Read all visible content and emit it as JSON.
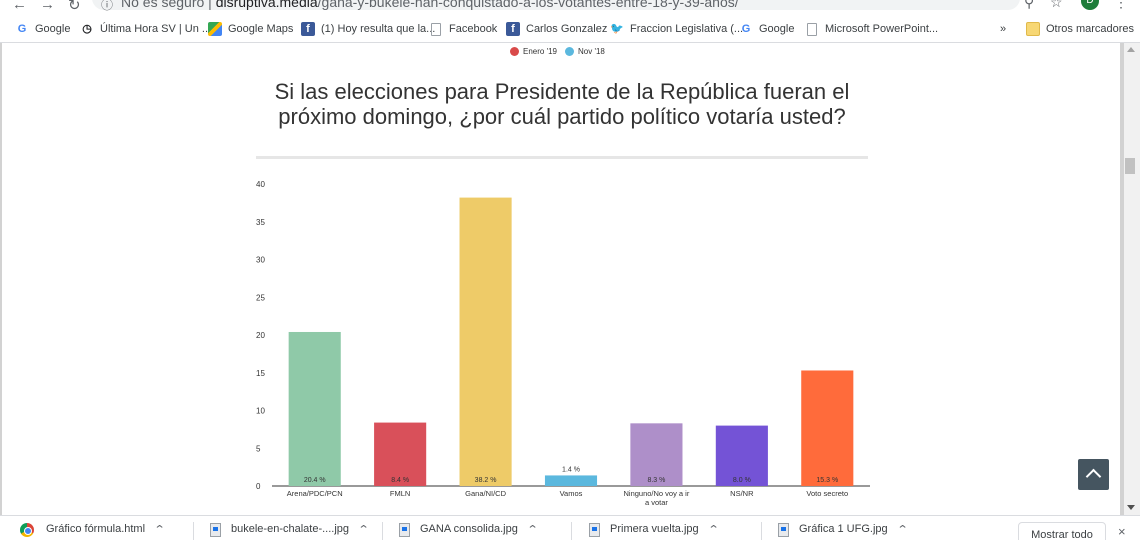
{
  "browser": {
    "omnibox": {
      "security_label": "No es seguro",
      "domain": "disruptiva.media",
      "path": "/gana-y-bukele-han-conquistado-a-los-votantes-entre-18-y-39-años/"
    },
    "profile_initial": "D"
  },
  "bookmarks": [
    {
      "label": "Google",
      "icon": "google-icon"
    },
    {
      "label": "Última Hora SV | Un ...",
      "icon": "clock-icon"
    },
    {
      "label": "Google Maps",
      "icon": "maps-icon"
    },
    {
      "label": "(1) Hoy resulta que la...",
      "icon": "facebook-icon"
    },
    {
      "label": "Facebook",
      "icon": "page-icon"
    },
    {
      "label": "Carlos Gonzalez",
      "icon": "facebook-icon"
    },
    {
      "label": "Fraccion Legislativa (...",
      "icon": "twitter-icon"
    },
    {
      "label": "Google",
      "icon": "google-icon"
    },
    {
      "label": "Microsoft PowerPoint...",
      "icon": "page-icon"
    }
  ],
  "bookmarks_overflow": "»",
  "other_bookmarks": "Otros marcadores",
  "legend": [
    {
      "label": "Enero '19",
      "color": "#d94a4a"
    },
    {
      "label": "Nov '18",
      "color": "#5bb8de"
    }
  ],
  "chart_data": {
    "type": "bar",
    "title": "Si las elecciones para Presidente de la República fueran el próximo domingo, ¿por cuál partido político votaría usted?",
    "categories": [
      "Arena/PDC/PCN",
      "FMLN",
      "Gana/NI/CD",
      "Vamos",
      "Ninguno/No voy a ir a votar",
      "NS/NR",
      "Voto secreto"
    ],
    "values": [
      20.4,
      8.4,
      38.2,
      1.4,
      8.3,
      8.0,
      15.3
    ],
    "value_labels": [
      "20.4 %",
      "8.4 %",
      "38.2 %",
      "1.4 %",
      "8.3 %",
      "8.0 %",
      "15.3 %"
    ],
    "colors": [
      "#8fc9a8",
      "#d9505a",
      "#eecb68",
      "#5bb8de",
      "#ae8fc9",
      "#7453d6",
      "#ff6b3b"
    ],
    "yticks": [
      0,
      5,
      10,
      15,
      20,
      25,
      30,
      35,
      40
    ],
    "ylim": [
      0,
      40
    ],
    "xlabel": "",
    "ylabel": "",
    "grid": false
  },
  "downloads": [
    {
      "name": "Gráfico fórmula.html",
      "icon": "chrome-icon"
    },
    {
      "name": "bukele-en-chalate-....jpg",
      "icon": "file-icon"
    },
    {
      "name": "GANA consolida.jpg",
      "icon": "file-icon"
    },
    {
      "name": "Primera vuelta.jpg",
      "icon": "file-icon"
    },
    {
      "name": "Gráfica 1 UFG.jpg",
      "icon": "file-icon"
    }
  ],
  "show_all_label": "Mostrar todo",
  "close_label": "×"
}
